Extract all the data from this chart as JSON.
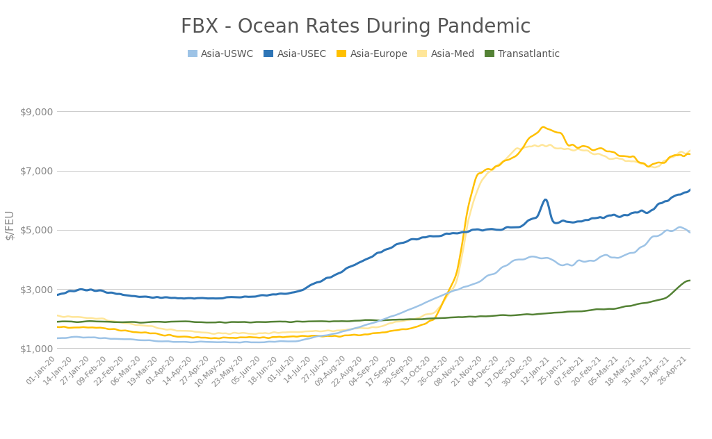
{
  "title": "FBX - Ocean Rates During Pandemic",
  "ylabel": "$/FEU",
  "ylim": [
    900,
    9500
  ],
  "yticks": [
    1000,
    3000,
    5000,
    7000,
    9000
  ],
  "ytick_labels": [
    "$1,000",
    "$3,000",
    "$5,000",
    "$7,000",
    "$9,000"
  ],
  "background_color": "#ffffff",
  "title_color": "#555555",
  "title_fontsize": 20,
  "series": {
    "Asia-USWC": {
      "color": "#9DC3E6",
      "linewidth": 1.8
    },
    "Asia-USEC": {
      "color": "#2E75B6",
      "linewidth": 2.2
    },
    "Asia-Europe": {
      "color": "#FFC000",
      "linewidth": 1.8
    },
    "Asia-Med": {
      "color": "#FFE699",
      "linewidth": 1.8
    },
    "Transatlantic": {
      "color": "#548235",
      "linewidth": 1.8
    }
  },
  "legend_colors": {
    "Asia-USWC": "#9DC3E6",
    "Asia-USEC": "#2E75B6",
    "Asia-Europe": "#FFC000",
    "Asia-Med": "#FFE699",
    "Transatlantic": "#548235"
  }
}
